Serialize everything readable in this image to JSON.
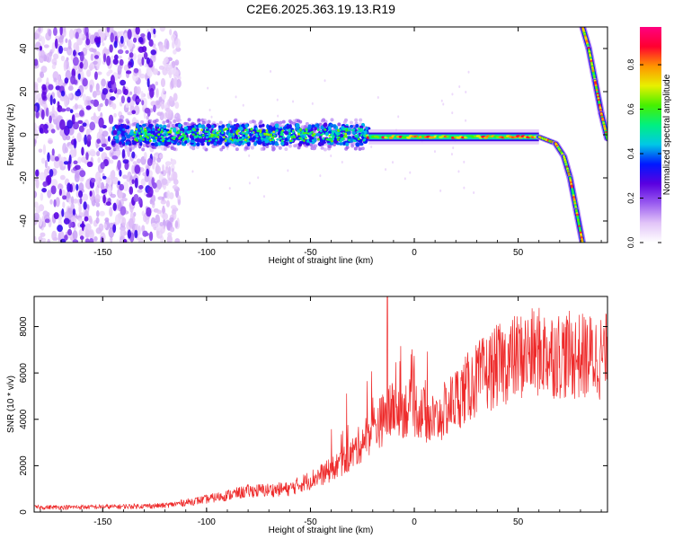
{
  "title": "C2E6.2025.363.19.13.R19",
  "colors": {
    "snr_line": "#ee2a2a",
    "colormap": [
      "#ffffff",
      "#e2c4f8",
      "#9a5cf0",
      "#5a00e0",
      "#0018ff",
      "#00c8e6",
      "#00f080",
      "#46f000",
      "#e8f000",
      "#ff9400",
      "#ff0030",
      "#ff0080"
    ]
  },
  "chart_data": [
    {
      "type": "heatmap",
      "title": "",
      "xlabel": "Height of straight line (km)",
      "ylabel": "Frequency (Hz)",
      "xlim": [
        -183,
        93
      ],
      "ylim": [
        -50,
        50
      ],
      "xticks": [
        -150,
        -100,
        -50,
        0,
        50
      ],
      "xtick_labels": [
        "-150",
        "-100",
        "-50",
        "0",
        "50"
      ],
      "yticks": [
        -40,
        -20,
        0,
        20,
        40
      ],
      "ytick_labels": [
        "-40",
        "-20",
        "0",
        "20",
        "40"
      ],
      "colorbar": {
        "label": "Normalized spectral amplitude",
        "range": [
          0,
          0.97
        ],
        "ticks": [
          0.0,
          0.2,
          0.4,
          0.6,
          0.8
        ],
        "tick_labels": [
          "0.0",
          "0.2",
          "0.4",
          "0.6",
          "0.8"
        ]
      },
      "features": [
        {
          "name": "noise region",
          "x_range": [
            -183,
            -115
          ],
          "freq_range": [
            -50,
            50
          ]
        },
        {
          "name": "noisy carrier",
          "x_range": [
            -145,
            -22
          ],
          "freq_center": 0,
          "freq_spread": 6
        },
        {
          "name": "clean carrier",
          "x_range": [
            -22,
            60
          ],
          "freq_center": -1
        },
        {
          "name": "carrier tail",
          "points": [
            [
              60,
              -1
            ],
            [
              68,
              -4
            ],
            [
              72,
              -10
            ],
            [
              75,
              -20
            ],
            [
              78,
              -35
            ],
            [
              81,
              -50
            ]
          ]
        },
        {
          "name": "wrapped carrier",
          "points": [
            [
              81,
              50
            ],
            [
              84,
              40
            ],
            [
              87,
              25
            ],
            [
              90,
              10
            ],
            [
              93,
              -2
            ]
          ]
        }
      ]
    },
    {
      "type": "line",
      "title": "",
      "xlabel": "Height of straight line (km)",
      "ylabel": "SNR (10 * v/v)",
      "xlim": [
        -183,
        93
      ],
      "ylim": [
        0,
        9300
      ],
      "xticks": [
        -150,
        -100,
        -50,
        0,
        50
      ],
      "xtick_labels": [
        "-150",
        "-100",
        "-50",
        "0",
        "50"
      ],
      "yticks": [
        0,
        2000,
        4000,
        6000,
        8000
      ],
      "ytick_labels": [
        "0",
        "2000",
        "4000",
        "6000",
        "8000"
      ],
      "trend": {
        "x": [
          -183,
          -150,
          -120,
          -100,
          -80,
          -60,
          -40,
          -30,
          -20,
          -10,
          0,
          10,
          20,
          30,
          40,
          50,
          60,
          70,
          80,
          93
        ],
        "y": [
          200,
          220,
          280,
          550,
          900,
          1000,
          1800,
          2500,
          3600,
          4400,
          4500,
          3900,
          4900,
          5700,
          6300,
          6700,
          6900,
          6800,
          6700,
          6700
        ]
      },
      "spike": {
        "x": -13,
        "y": 9300
      }
    }
  ]
}
